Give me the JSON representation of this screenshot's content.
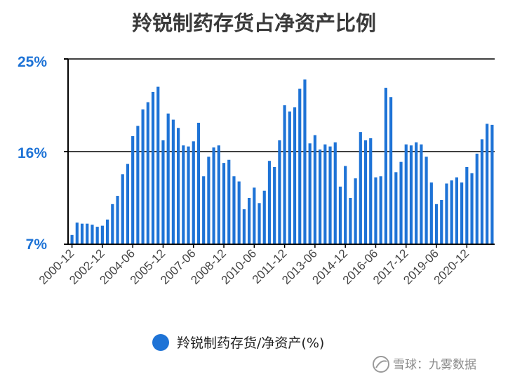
{
  "chart_data": {
    "type": "bar",
    "title": "羚锐制药存货占净资产比例",
    "xlabel": "",
    "ylabel": "",
    "ylim": [
      7,
      25
    ],
    "yticks": [
      "7%",
      "16%",
      "25%"
    ],
    "ytick_values": [
      7,
      16,
      25
    ],
    "grid": true,
    "legend_position": "bottom",
    "colors": {
      "bar": "#1e73d6",
      "axis": "#000000",
      "grid": "#000000"
    },
    "xtick_labels": [
      {
        "label": "2000-12",
        "index": 0
      },
      {
        "label": "2002-12",
        "index": 6
      },
      {
        "label": "2004-06",
        "index": 12
      },
      {
        "label": "2005-12",
        "index": 18
      },
      {
        "label": "2007-06",
        "index": 24
      },
      {
        "label": "2008-12",
        "index": 30
      },
      {
        "label": "2010-06",
        "index": 36
      },
      {
        "label": "2011-12",
        "index": 42
      },
      {
        "label": "2013-06",
        "index": 48
      },
      {
        "label": "2014-12",
        "index": 54
      },
      {
        "label": "2016-06",
        "index": 60
      },
      {
        "label": "2017-12",
        "index": 66
      },
      {
        "label": "2019-06",
        "index": 72
      },
      {
        "label": "2020-12",
        "index": 78
      }
    ],
    "series": [
      {
        "name": "羚锐制药存货/净资产(%)",
        "values": [
          7.9,
          9.1,
          9.0,
          9.0,
          8.9,
          8.7,
          8.8,
          9.4,
          10.9,
          11.7,
          13.8,
          14.8,
          17.5,
          18.5,
          20.1,
          20.8,
          21.8,
          22.3,
          17.1,
          19.7,
          19.1,
          18.3,
          16.6,
          16.5,
          17.0,
          18.8,
          13.6,
          15.5,
          16.4,
          16.6,
          14.9,
          15.2,
          13.6,
          13.1,
          10.4,
          11.5,
          12.5,
          11.0,
          12.2,
          15.1,
          14.5,
          17.1,
          20.5,
          19.9,
          20.3,
          22.1,
          23.0,
          16.8,
          17.6,
          16.2,
          16.7,
          16.5,
          16.9,
          12.6,
          14.6,
          11.5,
          13.4,
          17.9,
          17.1,
          17.3,
          13.5,
          13.6,
          22.2,
          21.3,
          14.0,
          15.0,
          16.7,
          16.6,
          16.9,
          16.7,
          15.5,
          13.0,
          10.9,
          11.3,
          12.9,
          13.2,
          13.5,
          13.0,
          14.5,
          13.9,
          15.8,
          17.2,
          18.7,
          18.6
        ]
      }
    ]
  },
  "watermark": {
    "text": "雪球：九雾数据",
    "icon": "snowball-logo-icon"
  }
}
